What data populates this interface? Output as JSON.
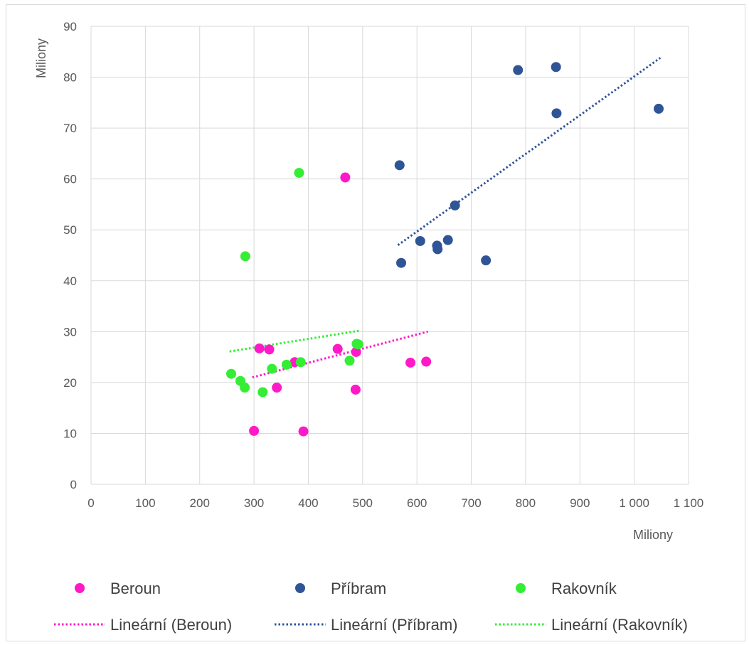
{
  "chart_data": {
    "type": "scatter",
    "title": "",
    "xlabel": "Miliony",
    "ylabel": "Miliony",
    "xlim": [
      0,
      1100
    ],
    "ylim": [
      0,
      90
    ],
    "x_ticks": [
      0,
      100,
      200,
      300,
      400,
      500,
      600,
      700,
      800,
      900,
      1000,
      1100
    ],
    "x_tick_labels": [
      "0",
      "100",
      "200",
      "300",
      "400",
      "500",
      "600",
      "700",
      "800",
      "900",
      "1 000",
      "1 100"
    ],
    "y_ticks": [
      0,
      10,
      20,
      30,
      40,
      50,
      60,
      70,
      80,
      90
    ],
    "y_tick_labels": [
      "0",
      "10",
      "20",
      "30",
      "40",
      "50",
      "60",
      "70",
      "80",
      "90"
    ],
    "grid": true,
    "legend_position": "bottom",
    "series": [
      {
        "name": "Beroun",
        "color": "#ff19c8",
        "points": [
          {
            "x": 310,
            "y": 26.7
          },
          {
            "x": 328,
            "y": 26.5
          },
          {
            "x": 375,
            "y": 24.0
          },
          {
            "x": 342,
            "y": 19.0
          },
          {
            "x": 300,
            "y": 10.5
          },
          {
            "x": 391,
            "y": 10.4
          },
          {
            "x": 454,
            "y": 26.6
          },
          {
            "x": 488,
            "y": 26.0
          },
          {
            "x": 487,
            "y": 18.6
          },
          {
            "x": 588,
            "y": 23.9
          },
          {
            "x": 617,
            "y": 24.1
          },
          {
            "x": 468,
            "y": 60.3
          }
        ],
        "trendline": {
          "name": "Lineární (Beroun)",
          "x1": 297,
          "y1": 21.0,
          "x2": 620,
          "y2": 30.0
        }
      },
      {
        "name": "Příbram",
        "color": "#2f5597",
        "points": [
          {
            "x": 568,
            "y": 62.7
          },
          {
            "x": 571,
            "y": 43.5
          },
          {
            "x": 606,
            "y": 47.8
          },
          {
            "x": 637,
            "y": 46.9
          },
          {
            "x": 638,
            "y": 46.2
          },
          {
            "x": 657,
            "y": 48.0
          },
          {
            "x": 670,
            "y": 54.8
          },
          {
            "x": 727,
            "y": 44.0
          },
          {
            "x": 786,
            "y": 81.4
          },
          {
            "x": 856,
            "y": 82.0
          },
          {
            "x": 857,
            "y": 72.9
          },
          {
            "x": 1045,
            "y": 73.8
          }
        ],
        "trendline": {
          "name": "Lineární (Příbram)",
          "x1": 565,
          "y1": 47.0,
          "x2": 1048,
          "y2": 83.8
        }
      },
      {
        "name": "Rakovník",
        "color": "#33ee33",
        "points": [
          {
            "x": 383,
            "y": 61.2
          },
          {
            "x": 284,
            "y": 44.8
          },
          {
            "x": 258,
            "y": 21.7
          },
          {
            "x": 275,
            "y": 20.3
          },
          {
            "x": 283,
            "y": 19.0
          },
          {
            "x": 316,
            "y": 18.1
          },
          {
            "x": 333,
            "y": 22.7
          },
          {
            "x": 360,
            "y": 23.5
          },
          {
            "x": 386,
            "y": 24.0
          },
          {
            "x": 476,
            "y": 24.3
          },
          {
            "x": 489,
            "y": 27.6
          },
          {
            "x": 492,
            "y": 27.5
          }
        ],
        "trendline": {
          "name": "Lineární (Rakovník)",
          "x1": 255,
          "y1": 26.1,
          "x2": 495,
          "y2": 30.2
        }
      }
    ]
  }
}
